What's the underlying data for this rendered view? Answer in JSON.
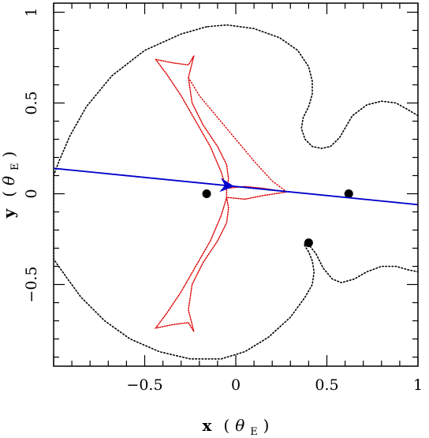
{
  "chart_data": {
    "type": "scatter",
    "title": "",
    "xlabel": "x (θE)",
    "ylabel": "y (θE)",
    "xlabel_parts": {
      "var": "x",
      "open": "(",
      "theta": "θ",
      "sub": "E",
      "close": ")"
    },
    "ylabel_parts": {
      "var": "y",
      "open": "(",
      "theta": "θ",
      "sub": "E",
      "close": ")"
    },
    "xlim": [
      -1.0,
      1.0
    ],
    "ylim": [
      -0.95,
      1.05
    ],
    "x_ticks": [
      {
        "value": -0.5,
        "label": "−0.5"
      },
      {
        "value": 0,
        "label": "0"
      },
      {
        "value": 0.5,
        "label": "0.5"
      },
      {
        "value": 1,
        "label": "1"
      }
    ],
    "y_ticks": [
      {
        "value": -0.5,
        "label": "−0.5"
      },
      {
        "value": 0,
        "label": "0"
      },
      {
        "value": 0.5,
        "label": "0.5"
      },
      {
        "value": 1,
        "label": "1"
      }
    ],
    "minor_tick_step": 0.1,
    "grid": false,
    "colors": {
      "critical_curve": "#000000",
      "caustic": "#dd0000",
      "trajectory": "#0000cc",
      "lens": "#000000"
    },
    "lenses": [
      {
        "x": -0.16,
        "y": 0.0
      },
      {
        "x": 0.62,
        "y": 0.0
      },
      {
        "x": 0.4,
        "y": -0.27
      }
    ],
    "source_trajectory": {
      "points": [
        [
          -1.0,
          0.14
        ],
        [
          1.0,
          -0.06
        ]
      ],
      "arrow_at": [
        -0.06,
        0.046
      ],
      "direction": "right"
    },
    "critical_curve": [
      [
        -0.16,
        0.92
      ],
      [
        -0.3,
        0.88
      ],
      [
        -0.5,
        0.79
      ],
      [
        -0.68,
        0.65
      ],
      [
        -0.82,
        0.48
      ],
      [
        -0.91,
        0.32
      ],
      [
        -0.97,
        0.18
      ],
      [
        -1.0,
        0.1
      ],
      [
        -1.0,
        -0.36
      ],
      [
        -0.93,
        -0.46
      ],
      [
        -0.85,
        -0.57
      ],
      [
        -0.72,
        -0.7
      ],
      [
        -0.58,
        -0.8
      ],
      [
        -0.42,
        -0.87
      ],
      [
        -0.25,
        -0.91
      ],
      [
        -0.08,
        -0.91
      ],
      [
        0.05,
        -0.87
      ],
      [
        0.18,
        -0.79
      ],
      [
        0.3,
        -0.68
      ],
      [
        0.38,
        -0.57
      ],
      [
        0.42,
        -0.5
      ],
      [
        0.43,
        -0.43
      ],
      [
        0.42,
        -0.37
      ],
      [
        0.4,
        -0.32
      ],
      [
        0.38,
        -0.29
      ],
      [
        0.375,
        -0.275
      ],
      [
        0.4,
        -0.28
      ],
      [
        0.44,
        -0.33
      ],
      [
        0.48,
        -0.41
      ],
      [
        0.53,
        -0.47
      ],
      [
        0.58,
        -0.49
      ],
      [
        0.65,
        -0.47
      ],
      [
        0.72,
        -0.43
      ],
      [
        0.8,
        -0.4
      ],
      [
        0.88,
        -0.4
      ],
      [
        0.95,
        -0.42
      ],
      [
        1.0,
        -0.43
      ]
    ],
    "critical_curve_2": [
      [
        1.0,
        0.43
      ],
      [
        0.95,
        0.46
      ],
      [
        0.88,
        0.5
      ],
      [
        0.8,
        0.51
      ],
      [
        0.72,
        0.49
      ],
      [
        0.64,
        0.43
      ],
      [
        0.57,
        0.31
      ],
      [
        0.52,
        0.26
      ],
      [
        0.47,
        0.25
      ],
      [
        0.42,
        0.26
      ],
      [
        0.38,
        0.3
      ],
      [
        0.36,
        0.36
      ],
      [
        0.37,
        0.42
      ],
      [
        0.4,
        0.48
      ],
      [
        0.42,
        0.55
      ],
      [
        0.42,
        0.62
      ],
      [
        0.4,
        0.7
      ],
      [
        0.34,
        0.79
      ],
      [
        0.24,
        0.86
      ],
      [
        0.1,
        0.91
      ],
      [
        -0.05,
        0.93
      ],
      [
        -0.16,
        0.92
      ]
    ],
    "caustic": [
      [
        -0.44,
        0.74
      ],
      [
        -0.34,
        0.72
      ],
      [
        -0.26,
        0.71
      ],
      [
        -0.23,
        0.76
      ],
      [
        -0.26,
        0.64
      ],
      [
        -0.24,
        0.5
      ],
      [
        -0.18,
        0.38
      ],
      [
        -0.1,
        0.26
      ],
      [
        -0.05,
        0.16
      ],
      [
        -0.04,
        0.08
      ],
      [
        -0.05,
        0.03
      ],
      [
        0.05,
        0.04
      ],
      [
        0.15,
        0.03
      ],
      [
        0.28,
        0.01
      ],
      [
        0.15,
        -0.01
      ],
      [
        0.05,
        -0.03
      ],
      [
        -0.05,
        -0.02
      ],
      [
        -0.04,
        -0.08
      ],
      [
        -0.05,
        -0.16
      ],
      [
        -0.1,
        -0.26
      ],
      [
        -0.18,
        -0.38
      ],
      [
        -0.24,
        -0.5
      ],
      [
        -0.26,
        -0.64
      ],
      [
        -0.23,
        -0.76
      ],
      [
        -0.26,
        -0.71
      ],
      [
        -0.34,
        -0.72
      ],
      [
        -0.44,
        -0.74
      ],
      [
        -0.38,
        -0.66
      ],
      [
        -0.3,
        -0.54
      ],
      [
        -0.22,
        -0.4
      ],
      [
        -0.14,
        -0.26
      ],
      [
        -0.08,
        -0.12
      ],
      [
        -0.05,
        -0.02
      ],
      [
        -0.05,
        0.02
      ],
      [
        -0.08,
        0.12
      ],
      [
        -0.14,
        0.26
      ],
      [
        -0.22,
        0.4
      ],
      [
        -0.3,
        0.54
      ],
      [
        -0.38,
        0.66
      ],
      [
        -0.44,
        0.74
      ]
    ],
    "caustic_inner": [
      [
        -0.26,
        0.64
      ],
      [
        -0.2,
        0.54
      ],
      [
        -0.1,
        0.42
      ],
      [
        0.0,
        0.3
      ],
      [
        0.1,
        0.18
      ],
      [
        0.2,
        0.07
      ],
      [
        0.28,
        0.01
      ]
    ]
  }
}
